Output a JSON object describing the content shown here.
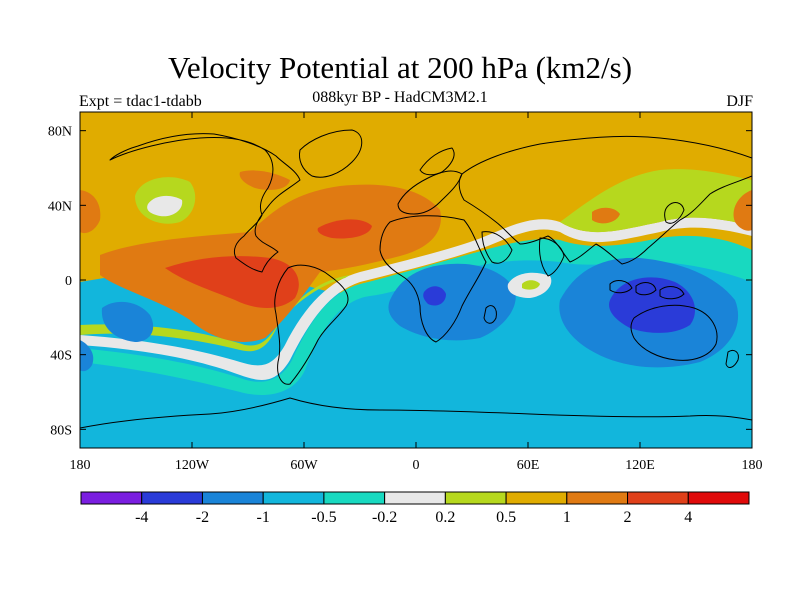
{
  "title": "Velocity Potential at 200 hPa (km2/s)",
  "subtitle": "088kyr BP - HadCM3M2.1",
  "left_label": "Expt = tdac1-tdabb",
  "right_label": "DJF",
  "map": {
    "lat_ticks": [
      "80N",
      "40N",
      "0",
      "40S",
      "80S"
    ],
    "lon_ticks": [
      "180",
      "120W",
      "60W",
      "0",
      "60E",
      "120E",
      "180"
    ]
  },
  "colorbar": {
    "colors": [
      "#7a1ee0",
      "#2a3bd8",
      "#1a84d8",
      "#12b6dc",
      "#18d9c0",
      "#e8e8e8",
      "#b6d81e",
      "#e0ac00",
      "#e07a12",
      "#e0401a",
      "#e00a0a"
    ],
    "labels": [
      "-4",
      "-2",
      "-1",
      "-0.5",
      "-0.2",
      "0.2",
      "0.5",
      "1",
      "2",
      "4"
    ]
  }
}
